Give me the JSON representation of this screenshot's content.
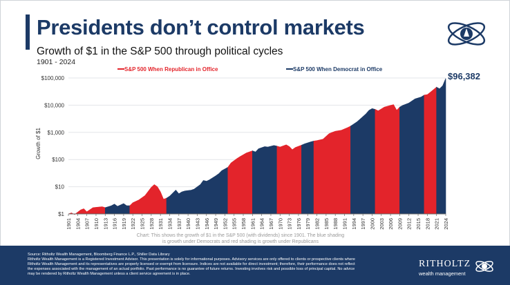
{
  "header": {
    "title": "Presidents don’t control markets",
    "subtitle": "Growth of $1 in the S&P 500 through political cycles",
    "period": "1901 - 2024"
  },
  "chart_data": {
    "type": "area",
    "title": "Presidents don’t control markets",
    "subtitle": "Growth of $1 in the S&P 500 through political cycles",
    "xlabel": "",
    "ylabel": "Growth of $1",
    "y_scale": "log",
    "ylim": [
      1,
      100000
    ],
    "xlim": [
      1901,
      2024
    ],
    "y_ticks": [
      "$1",
      "$10",
      "$100",
      "$1,000",
      "$10,000",
      "$100,000"
    ],
    "x_ticks": [
      "1901",
      "1904",
      "1907",
      "1910",
      "1913",
      "1916",
      "1919",
      "1922",
      "1925",
      "1928",
      "1931",
      "1934",
      "1937",
      "1940",
      "1943",
      "1946",
      "1949",
      "1952",
      "1955",
      "1958",
      "1961",
      "1964",
      "1967",
      "1970",
      "1973",
      "1976",
      "1979",
      "1982",
      "1985",
      "1988",
      "1991",
      "1994",
      "1997",
      "2000",
      "2003",
      "2006",
      "2009",
      "2012",
      "2015",
      "2018",
      "2021",
      "2024"
    ],
    "legend": [
      {
        "name": "S&P 500 When Republican in Office",
        "color": "#e3242b"
      },
      {
        "name": "S&P 500 When Democrat in Office",
        "color": "#1c3a66"
      }
    ],
    "legend_placement": "top",
    "end_label": "$96,382",
    "note": "Chart: This shows the growth of $1 in the S&P 500 (with dividends) since 1901. The blue shading is growth under Democrats and red shading is growth under Republicans",
    "series": [
      {
        "name": "S&P 500",
        "x": [
          1901,
          1902,
          1903,
          1905,
          1906,
          1907,
          1909,
          1910,
          1912,
          1913,
          1915,
          1916,
          1917,
          1919,
          1920,
          1921,
          1922,
          1924,
          1926,
          1928,
          1929,
          1930,
          1931,
          1932,
          1933,
          1934,
          1936,
          1937,
          1938,
          1939,
          1941,
          1942,
          1944,
          1945,
          1946,
          1947,
          1949,
          1950,
          1951,
          1953,
          1954,
          1956,
          1957,
          1958,
          1959,
          1961,
          1962,
          1963,
          1965,
          1966,
          1968,
          1969,
          1970,
          1972,
          1973,
          1974,
          1975,
          1977,
          1978,
          1980,
          1981,
          1982,
          1984,
          1986,
          1987,
          1988,
          1990,
          1992,
          1993,
          1995,
          1996,
          1998,
          1999,
          2000,
          2001,
          2002,
          2004,
          2006,
          2007,
          2008,
          2009,
          2010,
          2012,
          2014,
          2016,
          2017,
          2018,
          2019,
          2020,
          2021,
          2022,
          2023,
          2024
        ],
        "y": [
          1,
          1.1,
          0.95,
          1.4,
          1.55,
          1.2,
          1.7,
          1.75,
          1.85,
          1.7,
          2.0,
          2.3,
          1.9,
          2.4,
          2.0,
          2.0,
          2.6,
          3.3,
          4.8,
          9.5,
          12,
          10,
          6.5,
          3.5,
          3.8,
          4.5,
          7.5,
          5.5,
          6.5,
          7.0,
          7.5,
          8.2,
          12,
          17,
          16,
          18,
          25,
          30,
          39,
          52,
          75,
          110,
          130,
          150,
          175,
          210,
          190,
          250,
          300,
          290,
          330,
          310,
          290,
          350,
          300,
          230,
          280,
          340,
          380,
          450,
          480,
          500,
          560,
          900,
          1000,
          1100,
          1200,
          1500,
          1700,
          2400,
          3000,
          4800,
          6500,
          7500,
          7000,
          6200,
          8500,
          9800,
          10500,
          6500,
          8500,
          9800,
          12000,
          17000,
          20000,
          23500,
          24500,
          30000,
          37000,
          46000,
          40000,
          52000,
          96382
        ],
        "party_periods": [
          {
            "party": "Republican",
            "start": 1901,
            "end": 1913
          },
          {
            "party": "Democrat",
            "start": 1913,
            "end": 1921
          },
          {
            "party": "Republican",
            "start": 1921,
            "end": 1933
          },
          {
            "party": "Democrat",
            "start": 1933,
            "end": 1953
          },
          {
            "party": "Republican",
            "start": 1953,
            "end": 1961
          },
          {
            "party": "Democrat",
            "start": 1961,
            "end": 1969
          },
          {
            "party": "Republican",
            "start": 1969,
            "end": 1977
          },
          {
            "party": "Democrat",
            "start": 1977,
            "end": 1981
          },
          {
            "party": "Republican",
            "start": 1981,
            "end": 1993
          },
          {
            "party": "Democrat",
            "start": 1993,
            "end": 2001
          },
          {
            "party": "Republican",
            "start": 2001,
            "end": 2009
          },
          {
            "party": "Democrat",
            "start": 2009,
            "end": 2017
          },
          {
            "party": "Republican",
            "start": 2017,
            "end": 2021
          },
          {
            "party": "Democrat",
            "start": 2021,
            "end": 2024
          }
        ]
      }
    ]
  },
  "footer": {
    "lines": [
      "Source: Ritholtz Wealth Management, Bloomberg Finance L.P., Shiller Data Library",
      "Ritholtz Wealth Management is a Registered Investment Advisor. This presentation is solely for informational purposes. Advisory services are only offered to clients or prospective clients where",
      "Ritholtz Wealth Management and its representatives are properly licensed or exempt from licensure. Indices are not available for direct investment; therefore, their performance does not reflect",
      "the expenses associated with the management of an actual portfolio. Past performance is no guarantee of future returns. Investing involves risk and possible loss of principal capital. No advice",
      "may be rendered by Ritholtz Wealth Management unless a client service agreement is in place."
    ],
    "brand": "RITHOLTZ",
    "brand_sub": "wealth management"
  },
  "colors": {
    "republican": "#e3242b",
    "democrat": "#1c3a66",
    "title": "#1c3a66"
  }
}
